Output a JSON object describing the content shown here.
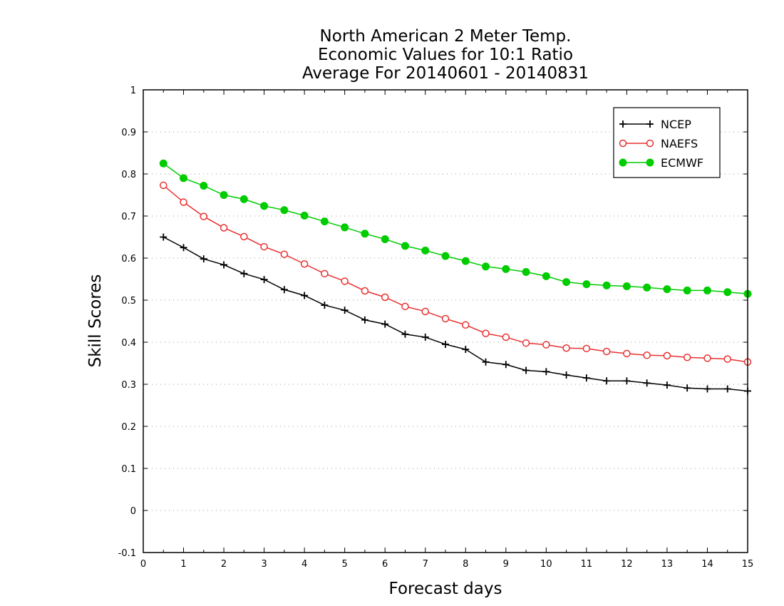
{
  "chart_data": {
    "type": "line",
    "title": [
      "North American 2 Meter Temp.",
      "Economic Values for 10:1 Ratio",
      "Average For 20140601 - 20140831"
    ],
    "xlabel": "Forecast days",
    "ylabel": "Skill Scores",
    "xlim": [
      0,
      15
    ],
    "ylim": [
      -0.1,
      1
    ],
    "xticks": [
      "0",
      "1",
      "2",
      "3",
      "4",
      "5",
      "6",
      "7",
      "8",
      "9",
      "10",
      "11",
      "12",
      "13",
      "14",
      "15"
    ],
    "yticks": [
      "-0.1",
      "0",
      "0.1",
      "0.2",
      "0.3",
      "0.4",
      "0.5",
      "0.6",
      "0.7",
      "0.8",
      "0.9",
      "1"
    ],
    "grid": "horizontal dotted",
    "legend_position": "top-right",
    "x": [
      0.5,
      1,
      1.5,
      2,
      2.5,
      3,
      3.5,
      4,
      4.5,
      5,
      5.5,
      6,
      6.5,
      7,
      7.5,
      8,
      8.5,
      9,
      9.5,
      10,
      10.5,
      11,
      11.5,
      12,
      12.5,
      13,
      13.5,
      14,
      14.5,
      15
    ],
    "series": [
      {
        "name": "NCEP",
        "color": "#000000",
        "marker": "plus",
        "values": [
          0.65,
          0.625,
          0.598,
          0.584,
          0.563,
          0.549,
          0.525,
          0.511,
          0.488,
          0.476,
          0.453,
          0.443,
          0.419,
          0.412,
          0.395,
          0.383,
          0.353,
          0.347,
          0.333,
          0.33,
          0.322,
          0.315,
          0.308,
          0.308,
          0.303,
          0.298,
          0.291,
          0.289,
          0.289,
          0.284
        ]
      },
      {
        "name": "NAEFS",
        "color": "#e83030",
        "marker": "open-circle",
        "values": [
          0.773,
          0.733,
          0.699,
          0.672,
          0.651,
          0.627,
          0.609,
          0.586,
          0.563,
          0.545,
          0.522,
          0.507,
          0.485,
          0.473,
          0.456,
          0.441,
          0.421,
          0.412,
          0.398,
          0.394,
          0.386,
          0.385,
          0.378,
          0.373,
          0.369,
          0.368,
          0.364,
          0.362,
          0.36,
          0.353
        ]
      },
      {
        "name": "ECMWF",
        "color": "#00cc00",
        "marker": "filled-circle",
        "values": [
          0.825,
          0.79,
          0.772,
          0.75,
          0.74,
          0.724,
          0.714,
          0.701,
          0.687,
          0.673,
          0.658,
          0.645,
          0.629,
          0.618,
          0.605,
          0.593,
          0.58,
          0.574,
          0.567,
          0.557,
          0.543,
          0.538,
          0.535,
          0.533,
          0.53,
          0.526,
          0.523,
          0.523,
          0.519,
          0.515
        ]
      }
    ]
  }
}
